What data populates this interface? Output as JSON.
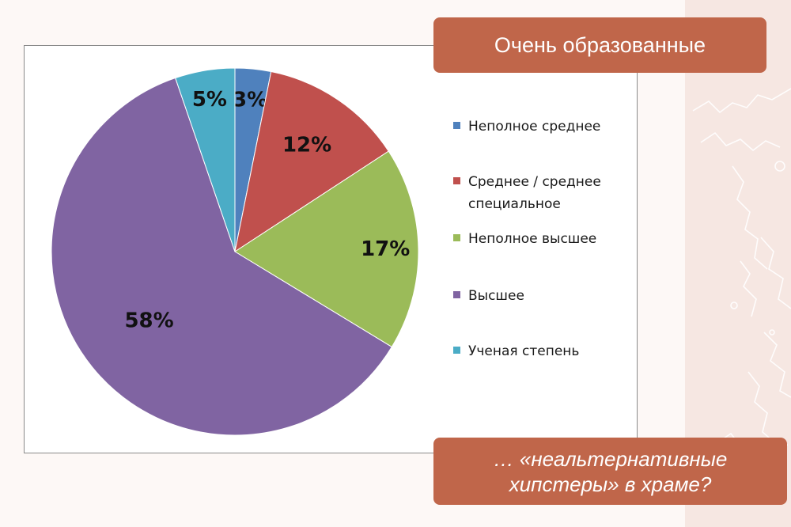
{
  "title_box": {
    "text": "Очень образованные"
  },
  "caption_box": {
    "line1": "… «неальтернативные",
    "line2": "хипстеры» в храме?"
  },
  "chart_data": {
    "type": "pie",
    "start": "12 o'clock",
    "direction": "clockwise",
    "legend_position": "right",
    "title": "",
    "slices": [
      {
        "label": "Неполное среднее",
        "value": 3,
        "display": "3%",
        "color": "#4f81bd"
      },
      {
        "label": "Среднее / среднее специальное",
        "value": 12,
        "display": "12%",
        "color": "#c0504d"
      },
      {
        "label": "Неполное высшее",
        "value": 17,
        "display": "17%",
        "color": "#9bbb59"
      },
      {
        "label": "Высшее",
        "value": 58,
        "display": "58%",
        "color": "#8064a2"
      },
      {
        "label": "Ученая степень",
        "value": 5,
        "display": "5%",
        "color": "#4bacc6"
      }
    ],
    "legend": [
      {
        "label": "Неполное среднее",
        "lines": [
          "Неполное среднее"
        ]
      },
      {
        "label": "Среднее / среднее специальное",
        "lines": [
          "Среднее / среднее",
          "специальное"
        ]
      },
      {
        "label": "Неполное высшее",
        "lines": [
          "Неполное высшее"
        ]
      },
      {
        "label": "Высшее",
        "lines": [
          "Высшее"
        ]
      },
      {
        "label": "Ученая степень",
        "lines": [
          "Ученая степень"
        ]
      }
    ]
  }
}
